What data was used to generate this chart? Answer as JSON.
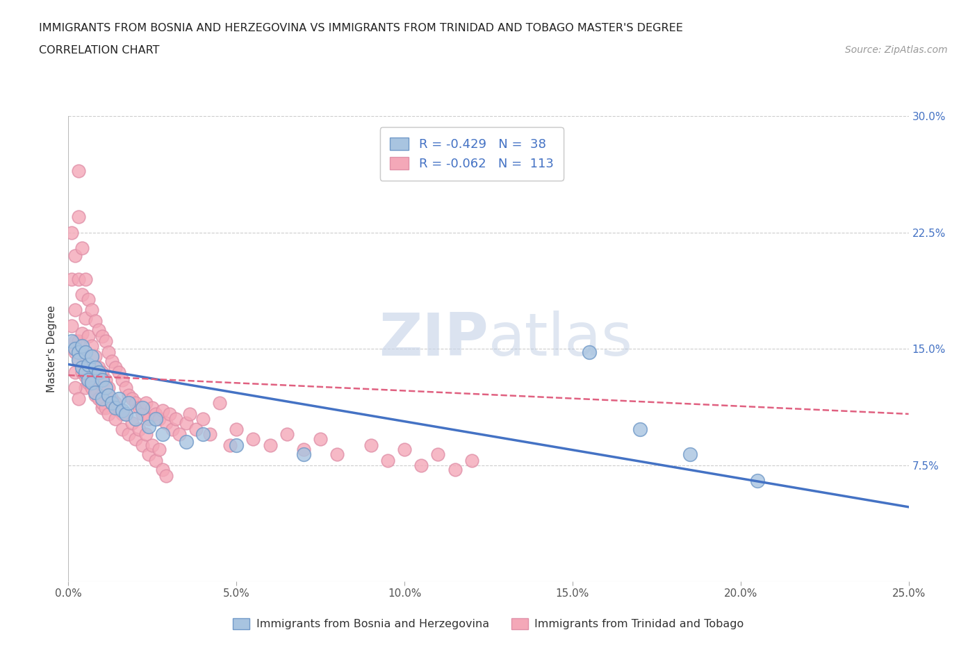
{
  "title_line1": "IMMIGRANTS FROM BOSNIA AND HERZEGOVINA VS IMMIGRANTS FROM TRINIDAD AND TOBAGO MASTER'S DEGREE",
  "title_line2": "CORRELATION CHART",
  "source_text": "Source: ZipAtlas.com",
  "ylabel": "Master's Degree",
  "legend_label1": "Immigrants from Bosnia and Herzegovina",
  "legend_label2": "Immigrants from Trinidad and Tobago",
  "r1": -0.429,
  "n1": 38,
  "r2": -0.062,
  "n2": 113,
  "color1": "#a8c4e0",
  "color2": "#f4a8b8",
  "line_color1": "#4472c4",
  "line_color2": "#e06080",
  "xlim": [
    0.0,
    0.25
  ],
  "ylim": [
    0.0,
    0.3
  ],
  "xtick_vals": [
    0.0,
    0.05,
    0.1,
    0.15,
    0.2,
    0.25
  ],
  "xtick_labels": [
    "0.0%",
    "5.0%",
    "10.0%",
    "15.0%",
    "20.0%",
    "25.0%"
  ],
  "ytick_vals": [
    0.0,
    0.075,
    0.15,
    0.225,
    0.3
  ],
  "ytick_labels": [
    "",
    "7.5%",
    "15.0%",
    "22.5%",
    "30.0%"
  ],
  "watermark_zip": "ZIP",
  "watermark_atlas": "atlas",
  "grid_color": "#cccccc",
  "background_color": "#ffffff",
  "bosnia_trend_x0": 0.0,
  "bosnia_trend_y0": 0.14,
  "bosnia_trend_x1": 0.25,
  "bosnia_trend_y1": 0.048,
  "trinidad_trend_x0": 0.0,
  "trinidad_trend_y0": 0.133,
  "trinidad_trend_x1": 0.25,
  "trinidad_trend_y1": 0.108,
  "bosnia_x": [
    0.001,
    0.002,
    0.003,
    0.003,
    0.004,
    0.004,
    0.005,
    0.005,
    0.006,
    0.006,
    0.007,
    0.007,
    0.008,
    0.008,
    0.009,
    0.01,
    0.01,
    0.011,
    0.012,
    0.013,
    0.014,
    0.015,
    0.016,
    0.017,
    0.018,
    0.02,
    0.022,
    0.024,
    0.026,
    0.028,
    0.035,
    0.04,
    0.05,
    0.07,
    0.155,
    0.17,
    0.185,
    0.205
  ],
  "bosnia_y": [
    0.155,
    0.15,
    0.148,
    0.143,
    0.152,
    0.138,
    0.148,
    0.135,
    0.14,
    0.13,
    0.145,
    0.128,
    0.138,
    0.122,
    0.135,
    0.13,
    0.118,
    0.125,
    0.12,
    0.115,
    0.112,
    0.118,
    0.11,
    0.108,
    0.115,
    0.105,
    0.112,
    0.1,
    0.105,
    0.095,
    0.09,
    0.095,
    0.088,
    0.082,
    0.148,
    0.098,
    0.082,
    0.065
  ],
  "trinidad_x": [
    0.001,
    0.001,
    0.001,
    0.002,
    0.002,
    0.002,
    0.002,
    0.003,
    0.003,
    0.003,
    0.003,
    0.004,
    0.004,
    0.004,
    0.004,
    0.005,
    0.005,
    0.005,
    0.005,
    0.006,
    0.006,
    0.006,
    0.007,
    0.007,
    0.007,
    0.008,
    0.008,
    0.008,
    0.009,
    0.009,
    0.01,
    0.01,
    0.01,
    0.011,
    0.011,
    0.012,
    0.012,
    0.013,
    0.013,
    0.014,
    0.014,
    0.015,
    0.015,
    0.016,
    0.016,
    0.017,
    0.018,
    0.019,
    0.02,
    0.021,
    0.022,
    0.023,
    0.024,
    0.025,
    0.026,
    0.027,
    0.028,
    0.029,
    0.03,
    0.031,
    0.032,
    0.033,
    0.035,
    0.036,
    0.038,
    0.04,
    0.042,
    0.045,
    0.048,
    0.05,
    0.055,
    0.06,
    0.065,
    0.07,
    0.075,
    0.08,
    0.09,
    0.095,
    0.1,
    0.105,
    0.11,
    0.115,
    0.12,
    0.002,
    0.002,
    0.003,
    0.003,
    0.004,
    0.005,
    0.006,
    0.007,
    0.008,
    0.009,
    0.01,
    0.011,
    0.012,
    0.013,
    0.014,
    0.015,
    0.016,
    0.017,
    0.018,
    0.019,
    0.02,
    0.021,
    0.022,
    0.023,
    0.024,
    0.025,
    0.026,
    0.027,
    0.028,
    0.029
  ],
  "trinidad_y": [
    0.225,
    0.195,
    0.165,
    0.21,
    0.175,
    0.155,
    0.135,
    0.265,
    0.235,
    0.195,
    0.155,
    0.215,
    0.185,
    0.16,
    0.135,
    0.195,
    0.17,
    0.148,
    0.125,
    0.182,
    0.158,
    0.132,
    0.175,
    0.152,
    0.128,
    0.168,
    0.145,
    0.122,
    0.162,
    0.138,
    0.158,
    0.135,
    0.112,
    0.155,
    0.13,
    0.148,
    0.125,
    0.142,
    0.118,
    0.138,
    0.115,
    0.135,
    0.11,
    0.13,
    0.108,
    0.125,
    0.12,
    0.118,
    0.115,
    0.112,
    0.108,
    0.115,
    0.105,
    0.112,
    0.108,
    0.105,
    0.11,
    0.102,
    0.108,
    0.098,
    0.105,
    0.095,
    0.102,
    0.108,
    0.098,
    0.105,
    0.095,
    0.115,
    0.088,
    0.098,
    0.092,
    0.088,
    0.095,
    0.085,
    0.092,
    0.082,
    0.088,
    0.078,
    0.085,
    0.075,
    0.082,
    0.072,
    0.078,
    0.148,
    0.125,
    0.142,
    0.118,
    0.138,
    0.132,
    0.128,
    0.125,
    0.12,
    0.118,
    0.115,
    0.112,
    0.108,
    0.115,
    0.105,
    0.112,
    0.098,
    0.108,
    0.095,
    0.102,
    0.092,
    0.098,
    0.088,
    0.095,
    0.082,
    0.088,
    0.078,
    0.085,
    0.072,
    0.068
  ]
}
